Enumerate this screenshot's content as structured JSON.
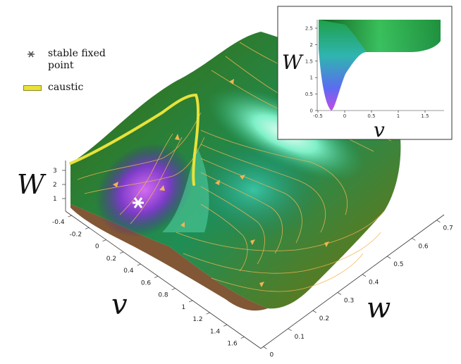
{
  "legend": {
    "fixed_point_label": "stable fixed point",
    "caustic_label": "caustic",
    "caustic_color": "#e8e23a",
    "fixed_point_color": "#ffffff"
  },
  "axes": {
    "W_label": "W",
    "v_label": "v",
    "w_label": "w",
    "W_ticks": [
      "1",
      "2",
      "3"
    ],
    "v_ticks": [
      "-0.4",
      "-0.2",
      "0",
      "0.2",
      "0.4",
      "0.6",
      "0.8",
      "1",
      "1.2",
      "1.4",
      "1.6"
    ],
    "w_ticks": [
      "0",
      "0.1",
      "0.2",
      "0.3",
      "0.4",
      "0.5",
      "0.6",
      "0.7"
    ]
  },
  "inset": {
    "y_label": "W",
    "x_label": "v",
    "y_ticks": [
      "0",
      "0.5",
      "1",
      "1.5",
      "2",
      "2.5"
    ],
    "x_ticks": [
      "-0.5",
      "0",
      "0.5",
      "1",
      "1.5"
    ]
  },
  "colors": {
    "flow_lines": "#f2b552",
    "surface_green": "#1f8a3a",
    "surface_purple": "#a23ad8"
  }
}
